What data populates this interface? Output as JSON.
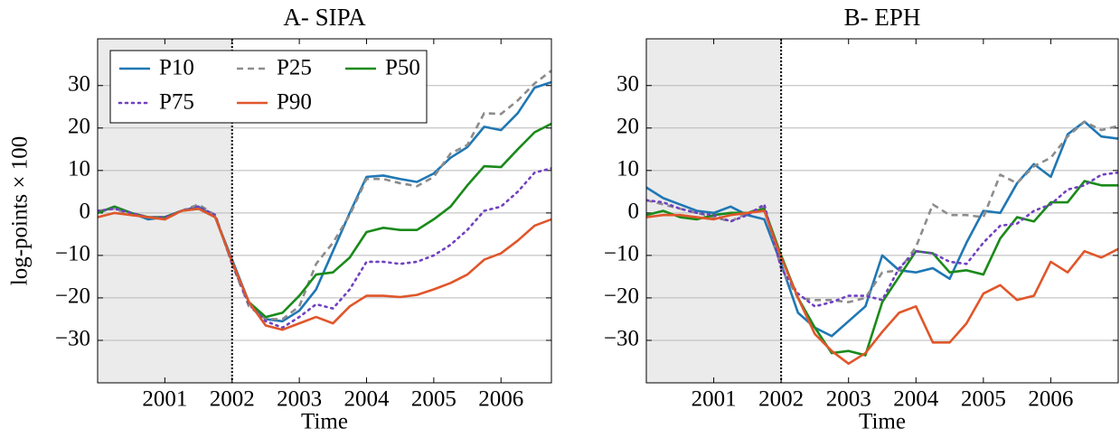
{
  "chart_data": [
    {
      "type": "line",
      "title": "A- SIPA",
      "x_label": "Time",
      "y_label": "log-points × 100",
      "x": [
        2000,
        2000.25,
        2000.5,
        2000.75,
        2001,
        2001.25,
        2001.5,
        2001.75,
        2002,
        2002.25,
        2002.5,
        2002.75,
        2003,
        2003.25,
        2003.5,
        2003.75,
        2004,
        2004.25,
        2004.5,
        2004.75,
        2005,
        2005.25,
        2005.5,
        2005.75,
        2006,
        2006.25,
        2006.5,
        2006.75
      ],
      "xlim": [
        2000,
        2006.75
      ],
      "xticks": [
        2001,
        2002,
        2003,
        2004,
        2005,
        2006
      ],
      "ylim": [
        -40,
        41
      ],
      "yticks": [
        {
          "value": -30,
          "label": "−30"
        },
        {
          "value": -20,
          "label": "−20"
        },
        {
          "value": -10,
          "label": "−10"
        },
        0,
        10,
        20,
        30
      ],
      "grid": "y",
      "legend": "upper left",
      "shade": [
        2000,
        2002
      ],
      "vline": 2002,
      "series": [
        {
          "name": "P10",
          "color": "#1f77b4",
          "dash": "solid",
          "values": [
            0,
            1.5,
            0,
            -1.5,
            -1,
            0.5,
            1.5,
            -1,
            -11,
            -21,
            -25,
            -25.5,
            -23,
            -18,
            -9,
            0,
            8.5,
            8.8,
            8,
            7.3,
            9.3,
            13,
            15.5,
            20.3,
            19.5,
            23.5,
            29.5,
            30.8
          ]
        },
        {
          "name": "P25",
          "color": "#8c8c8c",
          "dash": "dashed",
          "values": [
            0.5,
            1,
            -0.5,
            -1,
            -1.5,
            0.5,
            2,
            -0.5,
            -12,
            -22,
            -25,
            -25,
            -22,
            -12,
            -7,
            -0.5,
            8,
            8,
            7,
            6.3,
            8.5,
            14,
            16,
            23.5,
            23.3,
            26.5,
            30.5,
            33.5
          ]
        },
        {
          "name": "P50",
          "color": "#1a8a1a",
          "dash": "solid",
          "values": [
            0,
            1.5,
            0,
            -1,
            -1,
            0.5,
            1,
            -1,
            -11.5,
            -21,
            -24.5,
            -23.5,
            -19.5,
            -14.5,
            -14,
            -10.5,
            -4.5,
            -3.5,
            -4,
            -4,
            -1.5,
            1.5,
            6.5,
            11,
            10.8,
            15,
            19,
            21
          ]
        },
        {
          "name": "P75",
          "color": "#7040c0",
          "dash": "dotted",
          "values": [
            0.5,
            1,
            0,
            -1,
            -1,
            0.5,
            1.5,
            -0.5,
            -12,
            -21.5,
            -25.5,
            -27,
            -24.5,
            -21.5,
            -22.5,
            -18,
            -11.5,
            -11.5,
            -12,
            -11.5,
            -10,
            -7.5,
            -4,
            0.5,
            1.5,
            5,
            9.5,
            10.5
          ]
        },
        {
          "name": "P90",
          "color": "#e0562a",
          "dash": "solid",
          "values": [
            -1,
            0,
            -0.5,
            -1,
            -1.5,
            0.5,
            1,
            -1,
            -11.5,
            -21,
            -26.5,
            -27.5,
            -26,
            -24.5,
            -26,
            -22,
            -19.5,
            -19.5,
            -19.8,
            -19.3,
            -18,
            -16.5,
            -14.5,
            -11,
            -9.5,
            -6.5,
            -3,
            -1.5
          ]
        }
      ]
    },
    {
      "type": "line",
      "title": "B- EPH",
      "x_label": "Time",
      "x": [
        2000,
        2000.25,
        2000.5,
        2000.75,
        2001,
        2001.25,
        2001.5,
        2001.75,
        2002,
        2002.25,
        2002.5,
        2002.75,
        2003,
        2003.25,
        2003.5,
        2003.75,
        2004,
        2004.25,
        2004.5,
        2004.75,
        2005,
        2005.25,
        2005.5,
        2005.75,
        2006,
        2006.25,
        2006.5,
        2006.75,
        2007
      ],
      "xlim": [
        2000,
        2007
      ],
      "xticks": [
        2001,
        2002,
        2003,
        2004,
        2005,
        2006
      ],
      "ylim": [
        -40,
        41
      ],
      "yticks": [
        {
          "value": -30,
          "label": "−30"
        },
        {
          "value": -20,
          "label": "−20"
        },
        {
          "value": -10,
          "label": "−10"
        },
        0,
        10,
        20,
        30
      ],
      "grid": "y",
      "shade": [
        2000,
        2002
      ],
      "vline": 2002,
      "series": [
        {
          "color": "#1f77b4",
          "dash": "solid",
          "values": [
            6,
            3.5,
            2,
            0.5,
            0,
            1.5,
            -0.5,
            -1.5,
            -12,
            -23.5,
            -27,
            -29,
            -25.5,
            -22,
            -10,
            -13.5,
            -14,
            -13,
            -15.5,
            -7,
            0.5,
            0,
            7,
            11.5,
            8.5,
            18.5,
            21.5,
            18,
            17.5
          ]
        },
        {
          "color": "#8c8c8c",
          "dash": "dashed",
          "values": [
            3,
            2,
            1,
            0,
            -1,
            -2,
            0,
            1.5,
            -13,
            -20,
            -20.5,
            -20.5,
            -21,
            -20,
            -14,
            -13.5,
            -8,
            2,
            -0.5,
            -0.5,
            -1,
            9,
            7,
            11,
            13,
            18,
            21.5,
            19.5,
            20.5
          ]
        },
        {
          "color": "#1a8a1a",
          "dash": "solid",
          "values": [
            -0.5,
            0.5,
            -1,
            -1.5,
            -0.5,
            0,
            0,
            1,
            -10,
            -20,
            -27,
            -33,
            -32.5,
            -33.5,
            -21,
            -15,
            -9,
            -9.5,
            -14,
            -13.5,
            -14.5,
            -6,
            -1,
            -2,
            2.5,
            2.5,
            7.5,
            6.5,
            6.5
          ]
        },
        {
          "color": "#7040c0",
          "dash": "dotted",
          "values": [
            3,
            2.5,
            1,
            0,
            -0.5,
            -2,
            -0.5,
            2,
            -13,
            -19,
            -22,
            -21,
            -19.5,
            -19.5,
            -20.5,
            -13,
            -9,
            -9.5,
            -11.5,
            -12,
            -7,
            -3,
            -2.5,
            0.5,
            2,
            5.5,
            6.5,
            9,
            9.5
          ]
        },
        {
          "color": "#e0562a",
          "dash": "solid",
          "values": [
            -1,
            -0.5,
            -0.5,
            -1,
            -1.5,
            -0.5,
            0,
            0.5,
            -10.5,
            -20,
            -28.5,
            -32.5,
            -35.5,
            -33,
            -28,
            -23.5,
            -22,
            -30.5,
            -30.5,
            -26,
            -19,
            -17,
            -20.5,
            -19.5,
            -11.5,
            -14,
            -9,
            -10.5,
            -8.5
          ]
        }
      ]
    }
  ]
}
